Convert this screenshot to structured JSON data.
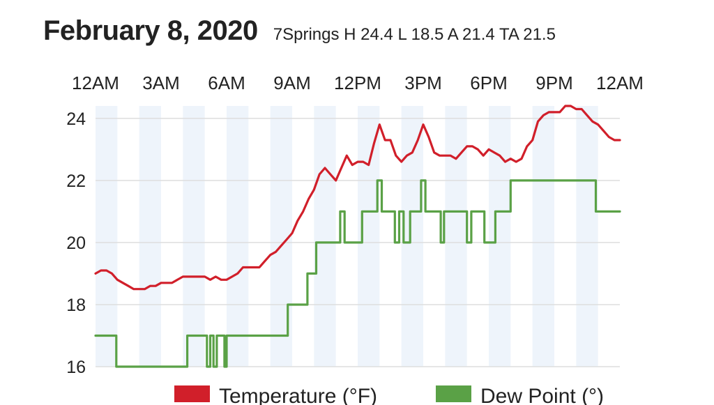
{
  "header": {
    "date_title": "February 8, 2020",
    "summary": "7Springs H 24.4 L 18.5 A 21.4 TA 21.5"
  },
  "colors": {
    "temperature": "#d11f2a",
    "dew_point": "#5aa146",
    "band": "#eef4fb",
    "grid": "#dedede"
  },
  "chart_data": {
    "type": "line",
    "title": "February 8, 2020",
    "subtitle": "7Springs H 24.4 L 18.5 A 21.4 TA 21.5",
    "x_ticks": [
      "12AM",
      "3AM",
      "6AM",
      "9AM",
      "12PM",
      "3PM",
      "6PM",
      "9PM",
      "12AM"
    ],
    "x_axis_position": "top",
    "xlim_hours": [
      0,
      24
    ],
    "y_ticks": [
      16,
      18,
      20,
      22,
      24
    ],
    "ylim": [
      16,
      24.4
    ],
    "grid": true,
    "legend_position": "bottom",
    "series": [
      {
        "name": "Temperature (°F)",
        "color": "#d11f2a",
        "step": false,
        "x": [
          0.0,
          0.25,
          0.5,
          0.75,
          1.0,
          1.25,
          1.5,
          1.75,
          2.0,
          2.25,
          2.5,
          2.75,
          3.0,
          3.25,
          3.5,
          3.75,
          4.0,
          4.25,
          4.5,
          4.75,
          5.0,
          5.25,
          5.5,
          5.75,
          6.0,
          6.25,
          6.5,
          6.75,
          7.0,
          7.25,
          7.5,
          7.75,
          8.0,
          8.25,
          8.5,
          8.75,
          9.0,
          9.25,
          9.5,
          9.75,
          10.0,
          10.25,
          10.5,
          10.75,
          11.0,
          11.25,
          11.5,
          11.75,
          12.0,
          12.25,
          12.5,
          12.75,
          13.0,
          13.25,
          13.5,
          13.75,
          14.0,
          14.25,
          14.5,
          14.75,
          15.0,
          15.25,
          15.5,
          15.75,
          16.0,
          16.25,
          16.5,
          16.75,
          17.0,
          17.25,
          17.5,
          17.75,
          18.0,
          18.25,
          18.5,
          18.75,
          19.0,
          19.25,
          19.5,
          19.75,
          20.0,
          20.25,
          20.5,
          20.75,
          21.0,
          21.25,
          21.5,
          21.75,
          22.0,
          22.25,
          22.5,
          22.75,
          23.0,
          23.25,
          23.5,
          23.75,
          24.0
        ],
        "values": [
          19.0,
          19.1,
          19.1,
          19.0,
          18.8,
          18.7,
          18.6,
          18.5,
          18.5,
          18.5,
          18.6,
          18.6,
          18.7,
          18.7,
          18.7,
          18.8,
          18.9,
          18.9,
          18.9,
          18.9,
          18.9,
          18.8,
          18.9,
          18.8,
          18.8,
          18.9,
          19.0,
          19.2,
          19.2,
          19.2,
          19.2,
          19.4,
          19.6,
          19.7,
          19.9,
          20.1,
          20.3,
          20.7,
          21.0,
          21.4,
          21.7,
          22.2,
          22.4,
          22.2,
          22.0,
          22.4,
          22.8,
          22.5,
          22.6,
          22.6,
          22.5,
          23.2,
          23.8,
          23.3,
          23.3,
          22.8,
          22.6,
          22.8,
          22.9,
          23.3,
          23.8,
          23.4,
          22.9,
          22.8,
          22.8,
          22.8,
          22.7,
          22.9,
          23.1,
          23.1,
          23.0,
          22.8,
          23.0,
          22.9,
          22.8,
          22.6,
          22.7,
          22.6,
          22.7,
          23.1,
          23.3,
          23.9,
          24.1,
          24.2,
          24.2,
          24.2,
          24.4,
          24.4,
          24.3,
          24.3,
          24.1,
          23.9,
          23.8,
          23.6,
          23.4,
          23.3,
          23.3
        ]
      },
      {
        "name": "Dew Point (°)",
        "color": "#5aa146",
        "step": true,
        "x": [
          0.0,
          0.95,
          0.95,
          4.2,
          4.2,
          5.1,
          5.1,
          5.25,
          5.25,
          5.4,
          5.4,
          5.55,
          5.55,
          5.9,
          5.9,
          6.0,
          6.0,
          6.2,
          6.2,
          8.8,
          8.8,
          9.7,
          9.7,
          10.1,
          10.1,
          10.5,
          10.5,
          11.2,
          11.2,
          11.4,
          11.4,
          12.2,
          12.2,
          12.9,
          12.9,
          13.1,
          13.1,
          13.7,
          13.7,
          13.9,
          13.9,
          14.1,
          14.1,
          14.4,
          14.4,
          14.9,
          14.9,
          15.1,
          15.1,
          15.8,
          15.8,
          15.95,
          15.95,
          17.0,
          17.0,
          17.2,
          17.2,
          17.8,
          17.8,
          18.3,
          18.3,
          19.0,
          19.0,
          22.9,
          22.9,
          23.1,
          23.1,
          24.0
        ],
        "values": [
          17,
          17,
          16,
          16,
          17,
          17,
          16,
          16,
          17,
          17,
          16,
          16,
          17,
          17,
          16,
          16,
          17,
          17,
          17,
          17,
          18,
          18,
          19,
          19,
          20,
          20,
          20,
          20,
          21,
          21,
          20,
          20,
          21,
          21,
          22,
          22,
          21,
          21,
          20,
          20,
          21,
          21,
          20,
          20,
          21,
          21,
          22,
          22,
          21,
          21,
          20,
          20,
          21,
          21,
          20,
          20,
          21,
          21,
          20,
          20,
          21,
          21,
          22,
          22,
          21,
          21,
          21,
          21
        ]
      }
    ]
  }
}
